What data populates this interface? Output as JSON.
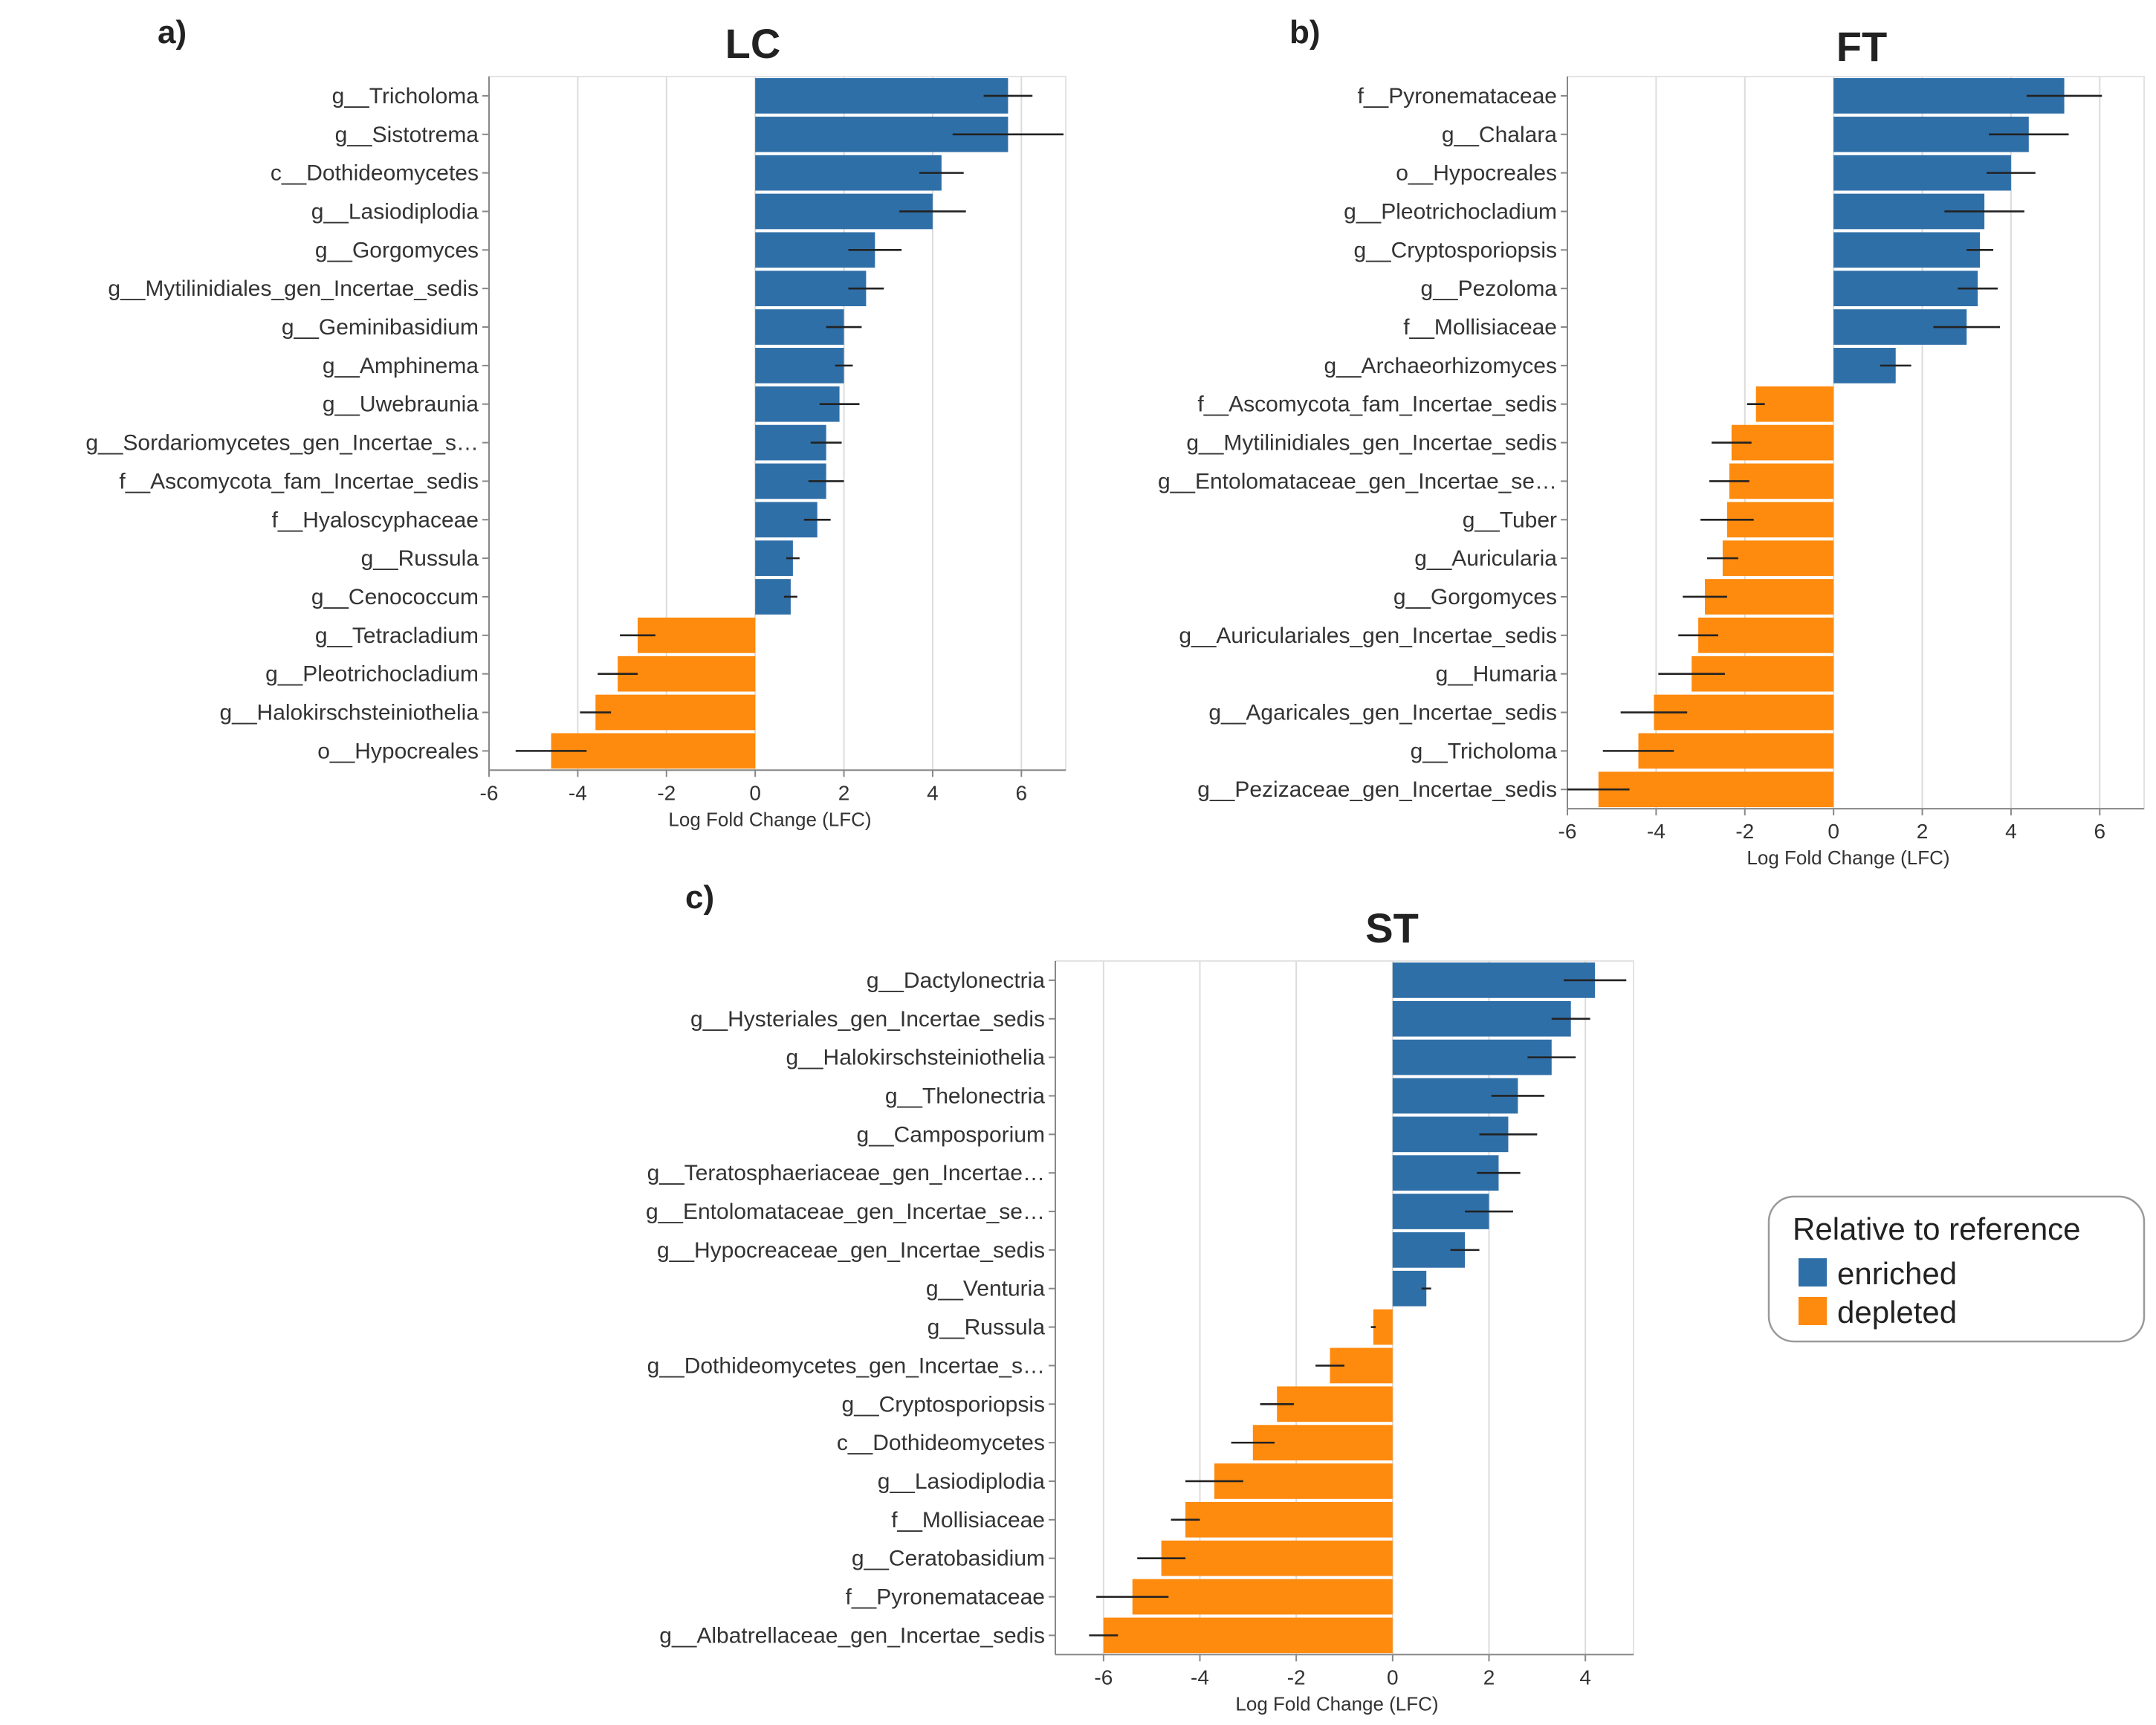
{
  "legend": {
    "title": "Relative to reference",
    "items": [
      {
        "label": "enriched",
        "color": "#2f6fa8"
      },
      {
        "label": "depleted",
        "color": "#fe8a0e"
      }
    ]
  },
  "chart_data": [
    {
      "type": "bar",
      "panel": "a)",
      "title": "LC",
      "xlabel": "Log Fold Change (LFC)",
      "xlim": [
        -6,
        7
      ],
      "xticks": [
        -6,
        -4,
        -2,
        0,
        2,
        4,
        6
      ],
      "categories": [
        "g__Tricholoma",
        "g__Sistotrema",
        "c__Dothideomycetes",
        "g__Lasiodiplodia",
        "g__Gorgomyces",
        "g__Mytilinidiales_gen_Incertae_sedis",
        "g__Geminibasidium",
        "g__Amphinema",
        "g__Uwebraunia",
        "g__Sordariomycetes_gen_Incertae_s…",
        "f__Ascomycota_fam_Incertae_sedis",
        "f__Hyaloscyphaceae",
        "g__Russula",
        "g__Cenococcum",
        "g__Tetracladium",
        "g__Pleotrichocladium",
        "g__Halokirschsteiniothelia",
        "o__Hypocreales"
      ],
      "values": [
        5.7,
        5.7,
        4.2,
        4.0,
        2.7,
        2.5,
        2.0,
        2.0,
        1.9,
        1.6,
        1.6,
        1.4,
        0.85,
        0.8,
        -2.65,
        -3.1,
        -3.6,
        -4.6
      ],
      "errors": [
        0.55,
        1.25,
        0.5,
        0.75,
        0.6,
        0.4,
        0.4,
        0.2,
        0.45,
        0.35,
        0.4,
        0.3,
        0.15,
        0.15,
        0.4,
        0.45,
        0.35,
        0.8
      ]
    },
    {
      "type": "bar",
      "panel": "b)",
      "title": "FT",
      "xlabel": "Log Fold Change (LFC)",
      "xlim": [
        -6,
        7
      ],
      "xticks": [
        -6,
        -4,
        -2,
        0,
        2,
        4,
        6
      ],
      "categories": [
        "f__Pyronemataceae",
        "g__Chalara",
        "o__Hypocreales",
        "g__Pleotrichocladium",
        "g__Cryptosporiopsis",
        "g__Pezoloma",
        "f__Mollisiaceae",
        "g__Archaeorhizomyces",
        "f__Ascomycota_fam_Incertae_sedis",
        "g__Mytilinidiales_gen_Incertae_sedis",
        "g__Entolomataceae_gen_Incertae_se…",
        "g__Tuber",
        "g__Auricularia",
        "g__Gorgomyces",
        "g__Auriculariales_gen_Incertae_sedis",
        "g__Humaria",
        "g__Agaricales_gen_Incertae_sedis",
        "g__Tricholoma",
        "g__Pezizaceae_gen_Incertae_sedis"
      ],
      "values": [
        5.2,
        4.4,
        4.0,
        3.4,
        3.3,
        3.25,
        3.0,
        1.4,
        -1.75,
        -2.3,
        -2.35,
        -2.4,
        -2.5,
        -2.9,
        -3.05,
        -3.2,
        -4.05,
        -4.4,
        -5.3
      ],
      "errors": [
        0.85,
        0.9,
        0.55,
        0.9,
        0.3,
        0.45,
        0.75,
        0.35,
        0.2,
        0.45,
        0.45,
        0.6,
        0.35,
        0.5,
        0.45,
        0.75,
        0.75,
        0.8,
        0.7
      ]
    },
    {
      "type": "bar",
      "panel": "c)",
      "title": "ST",
      "xlabel": "Log Fold Change (LFC)",
      "xlim": [
        -7,
        5
      ],
      "xticks": [
        -6,
        -4,
        -2,
        0,
        2,
        4
      ],
      "categories": [
        "g__Dactylonectria",
        "g__Hysteriales_gen_Incertae_sedis",
        "g__Halokirschsteiniothelia",
        "g__Thelonectria",
        "g__Camposporium",
        "g__Teratosphaeriaceae_gen_Incertae…",
        "g__Entolomataceae_gen_Incertae_se…",
        "g__Hypocreaceae_gen_Incertae_sedis",
        "g__Venturia",
        "g__Russula",
        "g__Dothideomycetes_gen_Incertae_s…",
        "g__Cryptosporiopsis",
        "c__Dothideomycetes",
        "g__Lasiodiplodia",
        "f__Mollisiaceae",
        "g__Ceratobasidium",
        "f__Pyronemataceae",
        "g__Albatrellaceae_gen_Incertae_sedis"
      ],
      "values": [
        4.2,
        3.7,
        3.3,
        2.6,
        2.4,
        2.2,
        2.0,
        1.5,
        0.7,
        -0.4,
        -1.3,
        -2.4,
        -2.9,
        -3.7,
        -4.3,
        -4.8,
        -5.4,
        -6.0
      ],
      "errors": [
        0.65,
        0.4,
        0.5,
        0.55,
        0.6,
        0.45,
        0.5,
        0.3,
        0.1,
        0.05,
        0.3,
        0.35,
        0.45,
        0.6,
        0.3,
        0.5,
        0.75,
        0.3
      ]
    }
  ]
}
